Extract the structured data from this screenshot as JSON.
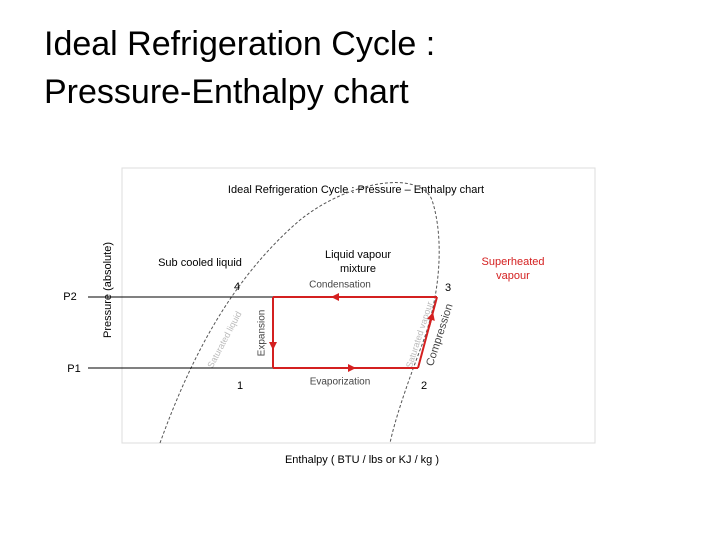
{
  "header": {
    "title_lines": [
      "Ideal Refrigeration Cycle :",
      "Pressure-Enthalpy chart"
    ]
  },
  "diagram": {
    "title": "Ideal Refrigeration Cycle : Pressure – Enthalpy chart",
    "y_axis_label": "Pressure  (absolute)",
    "x_axis_label": "Enthalpy  ( BTU / lbs or KJ / kg )",
    "pressure_levels": [
      "P2",
      "P1"
    ],
    "regions": [
      "Sub cooled liquid",
      "Liquid vapour mixture",
      "Superheated vapour"
    ],
    "points": [
      "4",
      "3",
      "1",
      "2"
    ],
    "processes": [
      "Condensation",
      "Expansion",
      "Evaporization",
      "Compression"
    ],
    "curves": [
      "Saturated liquid",
      "Saturated vapour"
    ]
  }
}
